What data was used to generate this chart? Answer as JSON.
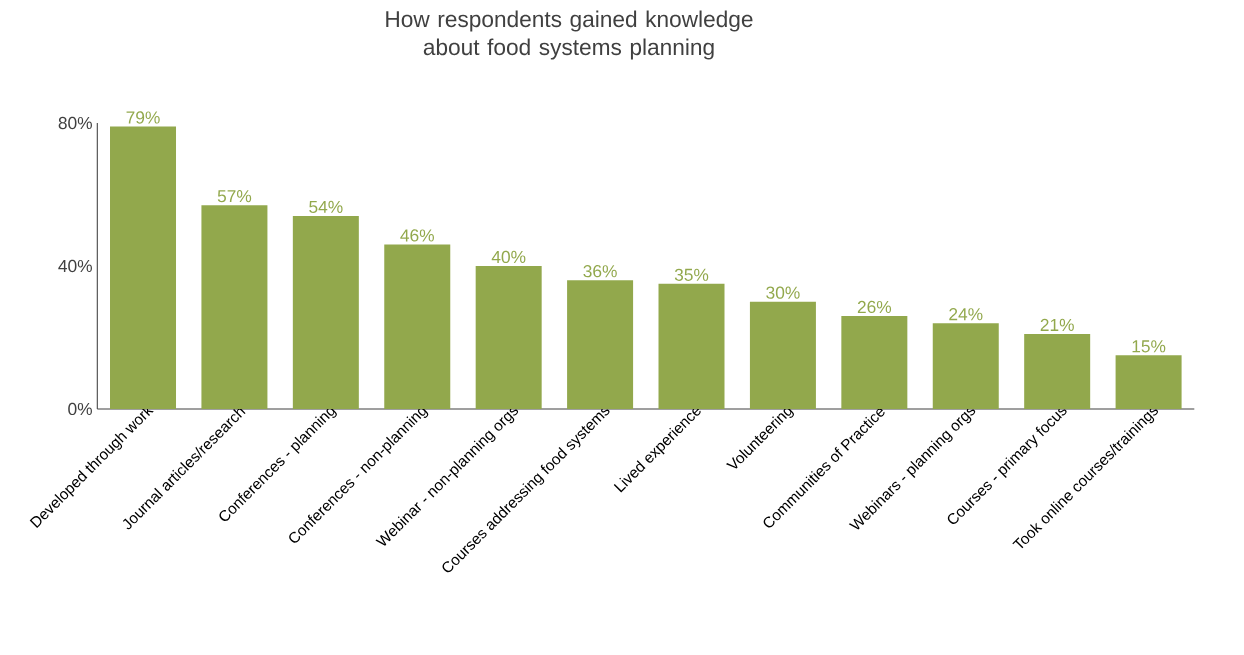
{
  "chart_data": {
    "type": "bar",
    "title": "How respondents gained knowledge about food systems planning",
    "categories": [
      "Developed through work",
      "Journal articles/research",
      "Conferences - planning",
      "Conferences - non-planning",
      "Webinar - non-planning orgs",
      "Courses addressing food systems",
      "Lived experience",
      "Volunteering",
      "Communities of Practice",
      "Webinars -  planning orgs",
      "Courses - primary focus",
      "Took online courses/trainings"
    ],
    "values": [
      79,
      57,
      54,
      46,
      40,
      36,
      35,
      30,
      26,
      24,
      21,
      15
    ],
    "value_labels": [
      "79%",
      "57%",
      "54%",
      "46%",
      "40%",
      "36%",
      "35%",
      "30%",
      "26%",
      "24%",
      "21%",
      "15%"
    ],
    "color": "#92a84c",
    "ylim": [
      0,
      80
    ],
    "yticks": [
      {
        "value": 0,
        "label": "0%"
      },
      {
        "value": 40,
        "label": "40%"
      },
      {
        "value": 80,
        "label": "80%"
      }
    ],
    "grid": false
  }
}
